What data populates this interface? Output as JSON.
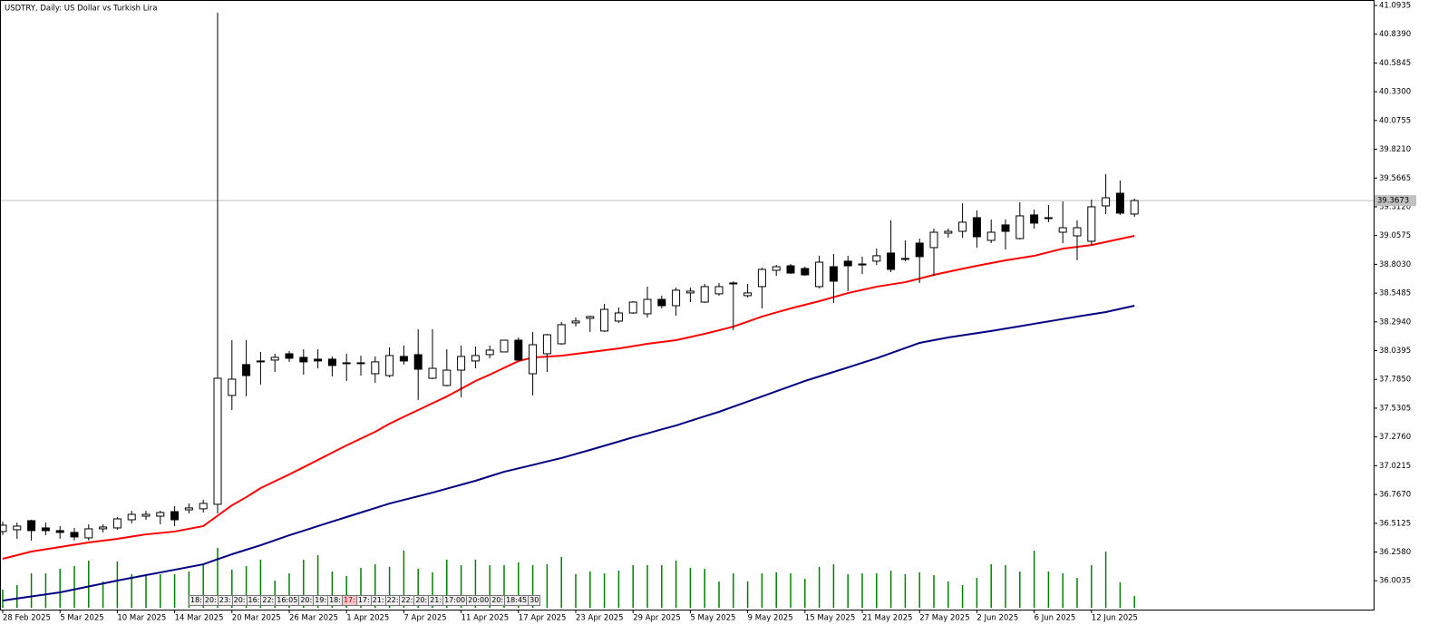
{
  "chart_data": {
    "type": "candlestick",
    "title": "USDTRY, Daily:  US Dollar vs Turkish Lira",
    "categories": [
      "28 Feb 2025",
      null,
      null,
      null,
      "5 Mar 2025",
      null,
      null,
      null,
      "10 Mar 2025",
      null,
      null,
      null,
      "14 Mar 2025",
      null,
      null,
      null,
      "20 Mar 2025",
      null,
      null,
      null,
      "26 Mar 2025",
      null,
      null,
      null,
      "1 Apr 2025",
      null,
      null,
      null,
      "7 Apr 2025",
      null,
      null,
      null,
      "11 Apr 2025",
      null,
      null,
      null,
      "17 Apr 2025",
      null,
      null,
      null,
      "23 Apr 2025",
      null,
      null,
      null,
      "29 Apr 2025",
      null,
      null,
      null,
      "5 May 2025",
      null,
      null,
      null,
      "9 May 2025",
      null,
      null,
      null,
      "15 May 2025",
      null,
      null,
      null,
      "21 May 2025",
      null,
      null,
      null,
      "27 May 2025",
      null,
      null,
      null,
      "2 Jun 2025",
      null,
      null,
      null,
      "6 Jun 2025",
      null,
      null,
      null,
      "12 Jun 2025",
      null,
      null,
      null
    ],
    "open": [
      36.439,
      36.455,
      36.535,
      36.471,
      36.447,
      36.431,
      36.383,
      36.463,
      36.471,
      36.543,
      36.575,
      36.575,
      36.615,
      36.631,
      36.64,
      36.68,
      37.643,
      37.916,
      37.948,
      37.956,
      38.012,
      37.98,
      37.964,
      37.964,
      37.932,
      37.924,
      37.835,
      37.819,
      37.988,
      38.004,
      37.795,
      37.731,
      37.867,
      37.948,
      38.004,
      38.028,
      38.132,
      37.835,
      38.012,
      38.1,
      38.285,
      38.325,
      38.213,
      38.301,
      38.373,
      38.365,
      38.493,
      38.437,
      38.55,
      38.469,
      38.542,
      38.638,
      38.526,
      38.606,
      38.75,
      38.79,
      38.766,
      38.606,
      38.782,
      38.831,
      38.806,
      38.831,
      38.903,
      38.855,
      38.991,
      38.951,
      39.079,
      39.095,
      39.216,
      39.015,
      39.152,
      39.031,
      39.24,
      39.216,
      39.087,
      39.055,
      39.007,
      39.32,
      39.432,
      39.248
    ],
    "high": [
      36.527,
      36.519,
      36.543,
      36.519,
      36.487,
      36.471,
      36.503,
      36.503,
      36.567,
      36.623,
      36.623,
      36.623,
      36.664,
      36.688,
      36.72,
      41.03,
      38.132,
      38.132,
      38.028,
      38.012,
      38.036,
      38.052,
      38.052,
      37.988,
      38.012,
      37.996,
      37.988,
      38.068,
      38.084,
      38.229,
      38.229,
      38.052,
      38.084,
      38.076,
      38.084,
      38.132,
      38.156,
      38.205,
      38.188,
      38.293,
      38.333,
      38.349,
      38.453,
      38.421,
      38.477,
      38.606,
      38.526,
      38.598,
      38.598,
      38.63,
      38.638,
      38.654,
      38.63,
      38.774,
      38.798,
      38.806,
      38.782,
      38.879,
      38.895,
      38.879,
      38.871,
      38.943,
      39.192,
      39.015,
      39.031,
      39.119,
      39.119,
      39.344,
      39.28,
      39.2,
      39.2,
      39.352,
      39.288,
      39.328,
      39.36,
      39.192,
      39.376,
      39.601,
      39.545,
      39.384
    ],
    "low": [
      36.407,
      36.375,
      36.359,
      36.407,
      36.375,
      36.359,
      36.359,
      36.431,
      36.455,
      36.511,
      36.543,
      36.503,
      36.487,
      36.599,
      36.607,
      36.599,
      37.514,
      37.635,
      37.739,
      37.851,
      37.94,
      37.827,
      37.883,
      37.811,
      37.771,
      37.819,
      37.755,
      37.803,
      37.916,
      37.603,
      37.787,
      37.723,
      37.627,
      37.883,
      37.972,
      38.028,
      37.956,
      37.643,
      37.851,
      38.092,
      38.253,
      38.205,
      38.205,
      38.285,
      38.365,
      38.333,
      38.413,
      38.349,
      38.469,
      38.461,
      38.526,
      38.221,
      38.509,
      38.413,
      38.702,
      38.718,
      38.702,
      38.59,
      38.461,
      38.566,
      38.718,
      38.798,
      38.734,
      38.831,
      38.638,
      38.702,
      39.039,
      39.039,
      38.951,
      38.991,
      38.935,
      39.023,
      39.119,
      39.176,
      38.991,
      38.839,
      38.975,
      39.248,
      39.24,
      39.224
    ],
    "close": [
      36.495,
      36.487,
      36.447,
      36.447,
      36.431,
      36.391,
      36.463,
      36.479,
      36.551,
      36.591,
      36.591,
      36.607,
      36.543,
      36.648,
      36.688,
      37.795,
      37.787,
      37.819,
      37.948,
      37.98,
      37.972,
      37.94,
      37.948,
      37.908,
      37.924,
      37.932,
      37.94,
      37.996,
      37.948,
      37.875,
      37.883,
      37.867,
      37.988,
      37.996,
      38.044,
      38.132,
      37.956,
      38.092,
      38.18,
      38.269,
      38.301,
      38.341,
      38.405,
      38.373,
      38.469,
      38.493,
      38.437,
      38.574,
      38.566,
      38.606,
      38.606,
      38.63,
      38.55,
      38.758,
      38.782,
      38.726,
      38.71,
      38.822,
      38.654,
      38.79,
      38.806,
      38.879,
      38.758,
      38.847,
      38.871,
      39.087,
      39.095,
      39.176,
      39.047,
      39.087,
      39.095,
      39.232,
      39.168,
      39.208,
      39.127,
      39.127,
      39.312,
      39.392,
      39.256,
      39.3673
    ],
    "volumes": [
      20,
      25,
      38,
      38,
      43,
      46,
      52,
      29,
      51,
      37,
      37,
      37,
      37,
      40,
      47,
      66,
      42,
      46,
      53,
      30,
      38,
      53,
      58,
      40,
      35,
      44,
      48,
      45,
      63,
      43,
      39,
      53,
      47,
      53,
      47,
      47,
      50,
      47,
      48,
      56,
      37,
      40,
      38,
      41,
      47,
      47,
      47,
      52,
      44,
      43,
      29,
      38,
      29,
      38,
      39,
      38,
      32,
      45,
      48,
      37,
      38,
      38,
      41,
      37,
      39,
      36,
      29,
      25,
      33,
      48,
      47,
      40,
      63,
      40,
      38,
      33,
      47,
      62,
      28,
      13
    ],
    "volume_color": "#008000",
    "moving_averages": [
      {
        "color": "#ff0000",
        "values": [
          36.198,
          36.23,
          36.262,
          36.282,
          36.302,
          36.322,
          36.342,
          36.358,
          36.374,
          36.394,
          36.414,
          36.426,
          36.439,
          36.463,
          36.487,
          36.579,
          36.671,
          36.743,
          36.823,
          36.884,
          36.944,
          37.008,
          37.072,
          37.137,
          37.201,
          37.261,
          37.321,
          37.393,
          37.454,
          37.514,
          37.574,
          37.634,
          37.702,
          37.771,
          37.827,
          37.887,
          37.947,
          37.979,
          37.987,
          37.995,
          38.011,
          38.027,
          38.043,
          38.059,
          38.079,
          38.1,
          38.116,
          38.132,
          38.16,
          38.188,
          38.22,
          38.252,
          38.296,
          38.341,
          38.377,
          38.413,
          38.445,
          38.477,
          38.513,
          38.549,
          38.577,
          38.605,
          38.625,
          38.645,
          38.677,
          38.71,
          38.737,
          38.764,
          38.79,
          38.814,
          38.838,
          38.858,
          38.878,
          38.91,
          38.942,
          38.958,
          38.974,
          39.001,
          39.028,
          39.055
        ]
      },
      {
        "color": "#000080",
        "values": [
          35.828,
          35.847,
          35.865,
          35.883,
          35.901,
          35.927,
          35.953,
          35.979,
          36.005,
          36.029,
          36.053,
          36.077,
          36.101,
          36.125,
          36.149,
          36.194,
          36.238,
          36.278,
          36.318,
          36.362,
          36.406,
          36.446,
          36.487,
          36.527,
          36.567,
          36.607,
          36.647,
          36.687,
          36.719,
          36.751,
          36.783,
          36.818,
          36.853,
          36.888,
          36.928,
          36.968,
          36.998,
          37.028,
          37.059,
          37.089,
          37.125,
          37.161,
          37.198,
          37.235,
          37.273,
          37.307,
          37.343,
          37.377,
          37.418,
          37.458,
          37.498,
          37.544,
          37.589,
          37.634,
          37.68,
          37.725,
          37.771,
          37.811,
          37.851,
          37.891,
          37.932,
          37.972,
          38.017,
          38.062,
          38.108,
          38.132,
          38.156,
          38.175,
          38.194,
          38.213,
          38.234,
          38.255,
          38.277,
          38.298,
          38.319,
          38.341,
          38.361,
          38.381,
          38.409,
          38.437
        ]
      }
    ],
    "current_price": 39.3673,
    "ylim": [
      35.7483,
      41.1417
    ],
    "yticks": [
      41.0935,
      {
        "value": 40.839,
        "label": "40.8390"
      },
      40.5845,
      {
        "value": 40.33,
        "label": "40.3300"
      },
      40.0755,
      {
        "value": 39.821,
        "label": "39.8210"
      },
      39.5665,
      {
        "value": 39.312,
        "label": "39.3120"
      },
      39.0575,
      {
        "value": 38.803,
        "label": "38.8030"
      },
      38.5485,
      {
        "value": 38.294,
        "label": "38.2940"
      },
      38.0395,
      {
        "value": 37.785,
        "label": "37.7850"
      },
      37.5305,
      {
        "value": 37.276,
        "label": "37.2760"
      },
      37.0215,
      {
        "value": 36.767,
        "label": "36.7670"
      },
      36.5125,
      {
        "value": 36.258,
        "label": "36.2580"
      },
      36.0035
    ],
    "event_labels": [
      "18:",
      "20:",
      "23:",
      "20:",
      "16:",
      "22:",
      "16:05",
      "20:",
      "19:",
      "18:",
      "17:",
      "17:",
      "21:",
      "22:",
      "22:",
      "20:",
      "21:",
      "17:00",
      "20:00",
      "20:",
      "18:45",
      "30"
    ]
  }
}
